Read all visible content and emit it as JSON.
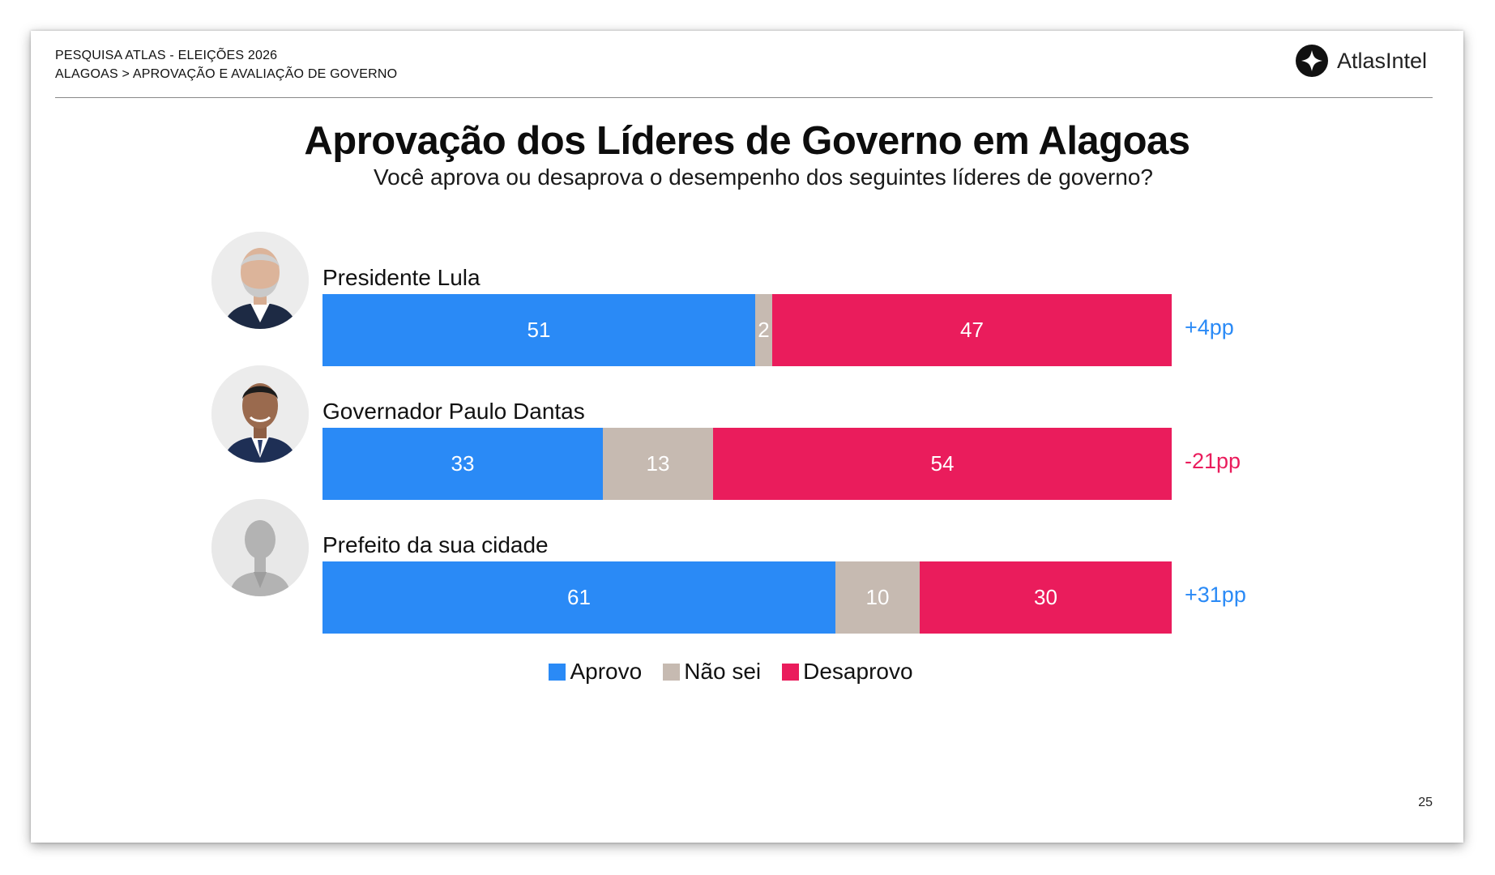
{
  "header": {
    "line1": "PESQUISA ATLAS - ELEIÇÕES 2026",
    "line2": "ALAGOAS > APROVAÇÃO E AVALIAÇÃO DE GOVERNO",
    "logo_text": "AtlasIntel",
    "logo_icon": "atlasintel-logo-icon"
  },
  "page_number": "25",
  "colors": {
    "approve": "#2a8af6",
    "unsure": "#c6bab1",
    "disapprove": "#ea1c5c",
    "positive_net": "#2a8af6",
    "negative_net": "#ea1c5c"
  },
  "chart_data": {
    "type": "bar",
    "orientation": "horizontal",
    "stacked": true,
    "title": "Aprovação dos Líderes de Governo em Alagoas",
    "subtitle": "Você aprova ou desaprova o desempenho dos seguintes líderes de governo?",
    "categories": [
      "Presidente Lula",
      "Governador Paulo Dantas",
      "Prefeito da sua cidade"
    ],
    "series": [
      {
        "name": "Aprovo",
        "values": [
          51,
          33,
          61
        ],
        "labels": [
          "51",
          "33",
          "61"
        ]
      },
      {
        "name": "Não sei",
        "values": [
          2,
          13,
          10
        ],
        "labels": [
          "2",
          "13",
          "10"
        ]
      },
      {
        "name": "Desaprovo",
        "values": [
          47,
          54,
          30
        ],
        "labels": [
          "47",
          "54",
          "30"
        ]
      }
    ],
    "net": [
      "+4pp",
      "-21pp",
      "+31pp"
    ],
    "net_sign": [
      "positive",
      "negative",
      "positive"
    ],
    "xlim": [
      0,
      100
    ],
    "legend_position": "bottom-center",
    "avatars": [
      "photo-lula",
      "photo-paulo-dantas",
      "generic-person-silhouette"
    ]
  }
}
